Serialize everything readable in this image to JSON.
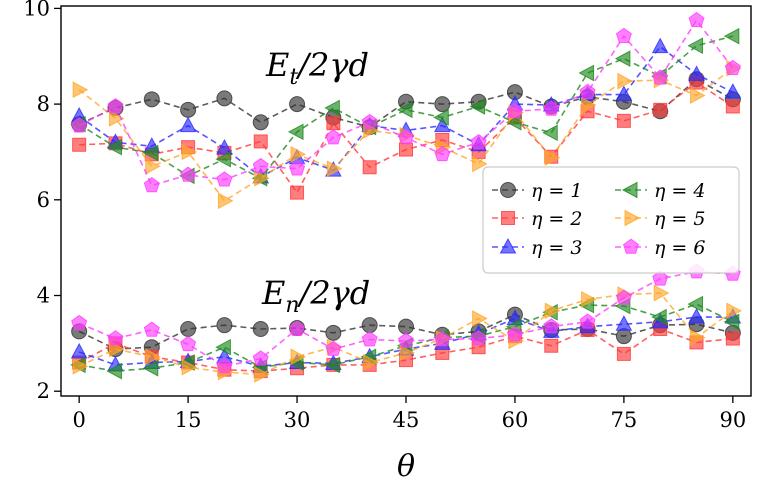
{
  "chart_data": {
    "type": "line",
    "x": [
      0,
      5,
      10,
      15,
      20,
      25,
      30,
      35,
      40,
      45,
      50,
      55,
      60,
      65,
      70,
      75,
      80,
      85,
      90
    ],
    "xticks": [
      "0",
      "15",
      "30",
      "45",
      "60",
      "75",
      "90"
    ],
    "yticks": [
      "2",
      "4",
      "6",
      "8",
      "10"
    ],
    "xlim": [
      -2.5,
      92.5
    ],
    "ylim": [
      1.9,
      10.05
    ],
    "xlabel": "θ",
    "ylabel": "",
    "grid": false,
    "legend_position": "center-right",
    "annotations": {
      "upper": {
        "text": "Et/2γd",
        "base": "E",
        "sub": "t",
        "rest": "/2γd"
      },
      "lower": {
        "text": "En/2γd",
        "base": "E",
        "sub": "n",
        "rest": "/2γd"
      }
    },
    "series": [
      {
        "name": "η = 1",
        "color": "#333333",
        "marker": "circle",
        "upper": [
          7.58,
          7.92,
          8.1,
          7.88,
          8.12,
          7.62,
          8.0,
          7.72,
          7.52,
          8.05,
          8.0,
          8.05,
          8.25,
          7.95,
          8.15,
          8.05,
          7.85,
          8.52,
          8.1
        ],
        "lower": [
          3.25,
          2.88,
          2.92,
          3.3,
          3.38,
          3.3,
          3.32,
          3.22,
          3.38,
          3.35,
          3.18,
          3.25,
          3.6,
          3.28,
          3.3,
          3.15,
          3.38,
          3.4,
          3.22
        ]
      },
      {
        "name": "η = 2",
        "color": "#ff3a3a",
        "marker": "square",
        "upper": [
          7.15,
          7.18,
          6.95,
          7.1,
          6.98,
          7.22,
          6.15,
          7.6,
          6.68,
          7.05,
          7.25,
          7.0,
          7.72,
          6.9,
          7.85,
          7.65,
          7.88,
          8.45,
          7.95
        ],
        "lower": [
          2.6,
          3.0,
          2.72,
          2.6,
          2.45,
          2.42,
          2.48,
          2.55,
          2.55,
          2.65,
          2.8,
          2.92,
          3.15,
          2.95,
          3.28,
          2.78,
          3.3,
          3.02,
          3.1
        ]
      },
      {
        "name": "η = 3",
        "color": "#2a2aff",
        "marker": "triangle-up",
        "upper": [
          7.75,
          7.2,
          7.12,
          7.55,
          7.08,
          6.48,
          6.88,
          6.62,
          7.55,
          7.45,
          7.55,
          7.15,
          8.0,
          7.98,
          8.2,
          8.2,
          9.2,
          8.62,
          8.25
        ],
        "lower": [
          2.82,
          2.55,
          2.6,
          2.62,
          2.72,
          2.52,
          2.6,
          2.58,
          2.72,
          2.88,
          3.0,
          3.2,
          3.52,
          3.25,
          3.35,
          3.4,
          3.45,
          3.55,
          3.55
        ]
      },
      {
        "name": "η = 4",
        "color": "#1e8a1e",
        "marker": "triangle-left",
        "upper": [
          7.58,
          7.1,
          6.98,
          6.5,
          6.85,
          6.45,
          7.42,
          7.92,
          7.52,
          7.88,
          7.72,
          7.95,
          7.62,
          7.4,
          8.65,
          8.95,
          8.58,
          9.22,
          9.42
        ],
        "lower": [
          2.55,
          2.42,
          2.48,
          2.6,
          2.92,
          2.5,
          2.6,
          2.55,
          2.72,
          2.95,
          3.12,
          3.15,
          3.35,
          3.65,
          3.8,
          3.78,
          3.55,
          3.82,
          3.45
        ]
      },
      {
        "name": "η = 5",
        "color": "#ffa628",
        "marker": "triangle-right",
        "upper": [
          8.3,
          7.7,
          6.7,
          7.0,
          5.98,
          6.45,
          6.95,
          6.65,
          7.45,
          7.35,
          7.1,
          6.75,
          7.82,
          6.88,
          7.98,
          8.48,
          8.5,
          8.18,
          8.75
        ],
        "lower": [
          2.52,
          2.88,
          2.72,
          2.5,
          2.4,
          2.35,
          2.72,
          2.92,
          2.6,
          2.8,
          3.1,
          3.52,
          3.05,
          3.68,
          3.92,
          4.02,
          4.05,
          3.12,
          3.68
        ]
      },
      {
        "name": "η = 6",
        "color": "#ff3cff",
        "marker": "pentagon",
        "upper": [
          7.55,
          7.95,
          6.3,
          6.52,
          6.42,
          6.7,
          6.65,
          7.3,
          7.62,
          7.3,
          6.95,
          7.2,
          7.85,
          7.9,
          8.25,
          9.42,
          8.55,
          9.75,
          8.75
        ],
        "lower": [
          3.42,
          3.1,
          3.28,
          2.98,
          2.52,
          2.68,
          3.3,
          2.88,
          3.08,
          3.05,
          3.08,
          3.1,
          3.18,
          3.35,
          3.45,
          3.95,
          4.35,
          4.5,
          4.45
        ]
      }
    ]
  }
}
